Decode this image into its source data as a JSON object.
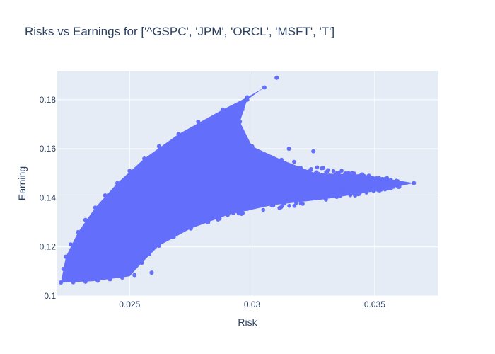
{
  "chart_data": {
    "type": "scatter",
    "title": "Risks vs Earnings for ['^GSPC', 'JPM', 'ORCL', 'MSFT', 'T']",
    "xlabel": "Risk",
    "ylabel": "Earning",
    "xlim": [
      0.02205,
      0.0376
    ],
    "ylim": [
      0.1,
      0.1918
    ],
    "xticks": [
      0.025,
      0.03,
      0.035
    ],
    "xtick_labels": [
      "0.025",
      "0.03",
      "0.035"
    ],
    "yticks": [
      0.1,
      0.12,
      0.14,
      0.16,
      0.18
    ],
    "ytick_labels": [
      "0.1",
      "0.12",
      "0.14",
      "0.16",
      "0.18"
    ],
    "grid": true,
    "legend": "none",
    "colors": {
      "marker": "#636efa",
      "plot_bg": "#e5ecf6",
      "text": "#2a3f5f"
    },
    "series": [
      {
        "points": [
          [
            0.0222,
            0.1055
          ],
          [
            0.0223,
            0.111
          ],
          [
            0.0224,
            0.116
          ],
          [
            0.0226,
            0.121
          ],
          [
            0.0229,
            0.126
          ],
          [
            0.0232,
            0.131
          ],
          [
            0.0236,
            0.136
          ],
          [
            0.024,
            0.141
          ],
          [
            0.0245,
            0.146
          ],
          [
            0.025,
            0.151
          ],
          [
            0.0256,
            0.156
          ],
          [
            0.0262,
            0.161
          ],
          [
            0.027,
            0.166
          ],
          [
            0.0278,
            0.171
          ],
          [
            0.0288,
            0.176
          ],
          [
            0.0298,
            0.181
          ],
          [
            0.0305,
            0.185
          ],
          [
            0.031,
            0.189
          ],
          [
            0.0227,
            0.1056
          ],
          [
            0.0232,
            0.1058
          ],
          [
            0.0237,
            0.1062
          ],
          [
            0.0242,
            0.1068
          ],
          [
            0.0247,
            0.1075
          ],
          [
            0.0252,
            0.1085
          ],
          [
            0.0259,
            0.1095
          ],
          [
            0.0245,
            0.11
          ],
          [
            0.025,
            0.1112
          ],
          [
            0.0255,
            0.1135
          ],
          [
            0.0258,
            0.117
          ],
          [
            0.0262,
            0.1205
          ],
          [
            0.0268,
            0.124
          ],
          [
            0.0275,
            0.1275
          ],
          [
            0.0282,
            0.13
          ],
          [
            0.029,
            0.133
          ],
          [
            0.0298,
            0.1355
          ],
          [
            0.0308,
            0.137
          ],
          [
            0.0318,
            0.138
          ],
          [
            0.033,
            0.1395
          ],
          [
            0.0342,
            0.141
          ],
          [
            0.0352,
            0.143
          ],
          [
            0.0366,
            0.146
          ],
          [
            0.036,
            0.1445
          ],
          [
            0.0355,
            0.148
          ],
          [
            0.0347,
            0.1465
          ],
          [
            0.0345,
            0.1495
          ],
          [
            0.0335,
            0.148
          ],
          [
            0.0326,
            0.15
          ],
          [
            0.0318,
            0.152
          ],
          [
            0.0312,
            0.1555
          ],
          [
            0.0305,
            0.1575
          ],
          [
            0.03,
            0.161
          ],
          [
            0.0296,
            0.166
          ],
          [
            0.0295,
            0.171
          ],
          [
            0.0296,
            0.176
          ],
          [
            0.0298,
            0.18
          ],
          [
            0.0325,
            0.159
          ],
          [
            0.0315,
            0.16
          ],
          [
            0.0308,
            0.153
          ],
          [
            0.033,
            0.147
          ],
          [
            0.0322,
            0.142
          ],
          [
            0.034,
            0.144
          ],
          [
            0.035,
            0.1455
          ],
          [
            0.0337,
            0.142
          ],
          [
            0.03,
            0.149
          ],
          [
            0.031,
            0.145
          ]
        ]
      }
    ]
  }
}
